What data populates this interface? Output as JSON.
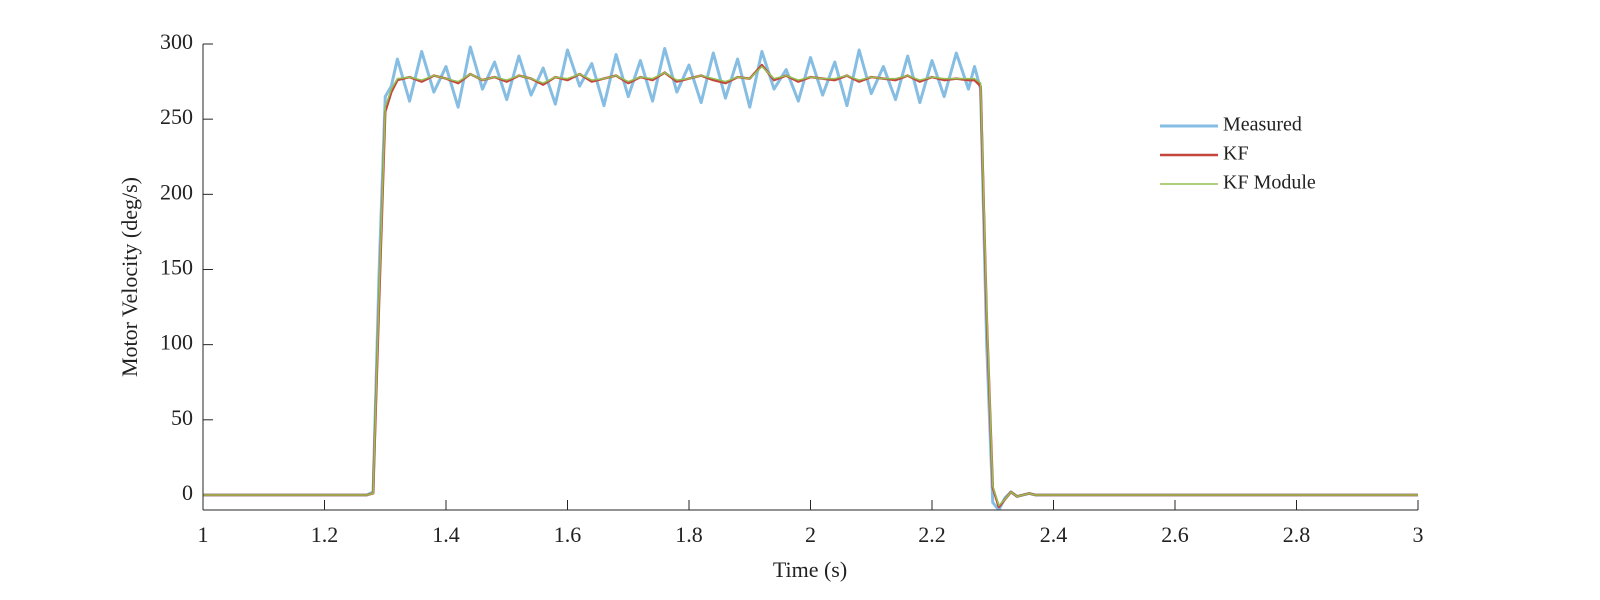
{
  "chart_data": {
    "type": "line",
    "xlabel": "Time (s)",
    "ylabel": "Motor Velocity (deg/s)",
    "x": [
      1,
      1.27,
      1.28,
      1.29,
      1.3,
      1.31,
      1.32,
      1.34,
      1.36,
      1.38,
      1.4,
      1.42,
      1.44,
      1.46,
      1.48,
      1.5,
      1.52,
      1.54,
      1.56,
      1.58,
      1.6,
      1.62,
      1.64,
      1.66,
      1.68,
      1.7,
      1.72,
      1.74,
      1.76,
      1.78,
      1.8,
      1.82,
      1.84,
      1.86,
      1.88,
      1.9,
      1.92,
      1.94,
      1.96,
      1.98,
      2,
      2.02,
      2.04,
      2.06,
      2.08,
      2.1,
      2.12,
      2.14,
      2.16,
      2.18,
      2.2,
      2.22,
      2.24,
      2.26,
      2.27,
      2.28,
      2.29,
      2.3,
      2.31,
      2.32,
      2.33,
      2.34,
      2.35,
      2.36,
      2.37,
      2.4,
      3
    ],
    "series": [
      {
        "name": "Measured",
        "color": "#86bde3",
        "width": 3,
        "values": [
          0,
          0,
          2,
          150,
          265,
          272,
          290,
          262,
          295,
          268,
          285,
          258,
          298,
          270,
          288,
          263,
          292,
          266,
          284,
          260,
          296,
          272,
          287,
          259,
          293,
          265,
          289,
          262,
          297,
          268,
          286,
          261,
          294,
          264,
          290,
          258,
          295,
          270,
          283,
          262,
          291,
          266,
          288,
          259,
          296,
          267,
          285,
          263,
          292,
          261,
          289,
          265,
          294,
          270,
          285,
          270,
          100,
          -5,
          -10,
          -2,
          2,
          -1,
          0,
          1,
          0,
          0,
          0
        ]
      },
      {
        "name": "KF",
        "color": "#c4463d",
        "width": 2.5,
        "values": [
          0,
          0,
          1,
          130,
          255,
          268,
          276,
          278,
          275,
          279,
          277,
          274,
          280,
          276,
          278,
          275,
          279,
          277,
          273,
          278,
          276,
          280,
          275,
          277,
          279,
          274,
          278,
          276,
          281,
          275,
          277,
          279,
          276,
          274,
          278,
          277,
          286,
          276,
          279,
          275,
          278,
          277,
          276,
          279,
          275,
          278,
          277,
          276,
          279,
          275,
          278,
          276,
          277,
          276,
          276,
          272,
          120,
          5,
          -8,
          -3,
          2,
          -1,
          0,
          1,
          0,
          0,
          0
        ]
      },
      {
        "name": "KF Module",
        "color": "#93c052",
        "width": 1.5,
        "values": [
          0,
          0,
          1,
          135,
          258,
          270,
          277,
          278,
          276,
          279,
          277,
          275,
          280,
          276,
          278,
          276,
          279,
          277,
          274,
          278,
          277,
          280,
          276,
          277,
          279,
          275,
          278,
          277,
          281,
          276,
          277,
          279,
          277,
          275,
          278,
          277,
          285,
          277,
          279,
          276,
          278,
          277,
          277,
          279,
          276,
          278,
          277,
          277,
          279,
          276,
          278,
          277,
          277,
          277,
          277,
          274,
          125,
          6,
          -7,
          -3,
          2,
          -1,
          0,
          1,
          0,
          0,
          0
        ]
      }
    ],
    "xlim": [
      1,
      3
    ],
    "xticks": [
      1,
      1.2,
      1.4,
      1.6,
      1.8,
      2,
      2.2,
      2.4,
      2.6,
      2.8,
      3
    ],
    "ylim": [
      -10,
      300
    ],
    "yticks": [
      0,
      50,
      100,
      150,
      200,
      250,
      300
    ],
    "legend": "upper right"
  }
}
